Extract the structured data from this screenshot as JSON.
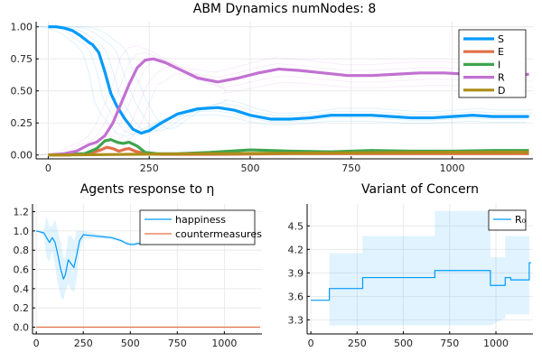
{
  "chart_data": [
    {
      "type": "line",
      "title": "ABM Dynamics numNodes: 8",
      "xlim": [
        -30,
        1200
      ],
      "ylim": [
        -0.03,
        1.04
      ],
      "xticks": [
        0,
        250,
        500,
        750,
        1000
      ],
      "yticks": [
        0.0,
        0.25,
        0.5,
        0.75,
        1.0
      ],
      "ytick_labels": [
        "0.00",
        "0.25",
        "0.50",
        "0.75",
        "1.00"
      ],
      "grid": true,
      "legend": "top-right",
      "series": [
        {
          "name": "S",
          "color": "#009AFA",
          "x": [
            0,
            20,
            40,
            60,
            80,
            100,
            110,
            125,
            140,
            155,
            170,
            190,
            210,
            230,
            250,
            280,
            320,
            370,
            420,
            460,
            500,
            550,
            600,
            650,
            700,
            750,
            800,
            850,
            900,
            950,
            1000,
            1050,
            1100,
            1150,
            1190
          ],
          "y": [
            1.0,
            1.0,
            0.99,
            0.97,
            0.93,
            0.88,
            0.86,
            0.8,
            0.65,
            0.48,
            0.38,
            0.28,
            0.2,
            0.17,
            0.19,
            0.25,
            0.32,
            0.36,
            0.37,
            0.35,
            0.31,
            0.28,
            0.28,
            0.29,
            0.31,
            0.31,
            0.31,
            0.3,
            0.29,
            0.29,
            0.3,
            0.31,
            0.3,
            0.3,
            0.3
          ]
        },
        {
          "name": "E",
          "color": "#E36F47",
          "x": [
            0,
            50,
            90,
            110,
            130,
            145,
            160,
            175,
            190,
            200,
            215,
            240,
            280,
            400,
            600,
            800,
            1000,
            1190
          ],
          "y": [
            0.0,
            0.0,
            0.01,
            0.02,
            0.04,
            0.06,
            0.05,
            0.03,
            0.045,
            0.05,
            0.03,
            0.01,
            0.005,
            0.005,
            0.01,
            0.01,
            0.01,
            0.01
          ]
        },
        {
          "name": "I",
          "color": "#3EA44E",
          "x": [
            0,
            50,
            90,
            120,
            140,
            155,
            170,
            185,
            200,
            220,
            240,
            270,
            320,
            400,
            450,
            500,
            550,
            600,
            700,
            800,
            900,
            1000,
            1100,
            1190
          ],
          "y": [
            0.0,
            0.005,
            0.01,
            0.05,
            0.11,
            0.12,
            0.1,
            0.09,
            0.1,
            0.07,
            0.02,
            0.01,
            0.01,
            0.02,
            0.03,
            0.04,
            0.035,
            0.03,
            0.025,
            0.035,
            0.03,
            0.03,
            0.035,
            0.035
          ]
        },
        {
          "name": "R",
          "color": "#C271D2",
          "x": [
            0,
            40,
            70,
            100,
            120,
            140,
            160,
            180,
            200,
            220,
            240,
            260,
            290,
            330,
            370,
            420,
            470,
            520,
            570,
            620,
            680,
            740,
            800,
            860,
            920,
            980,
            1040,
            1100,
            1150,
            1190
          ],
          "y": [
            0.0,
            0.01,
            0.03,
            0.08,
            0.1,
            0.15,
            0.25,
            0.4,
            0.55,
            0.68,
            0.74,
            0.75,
            0.72,
            0.66,
            0.6,
            0.57,
            0.6,
            0.64,
            0.67,
            0.66,
            0.64,
            0.62,
            0.62,
            0.63,
            0.64,
            0.64,
            0.63,
            0.62,
            0.62,
            0.63
          ]
        },
        {
          "name": "D",
          "color": "#AC8D18",
          "x": [
            0,
            100,
            200,
            300,
            400,
            500,
            600,
            700,
            800,
            900,
            1000,
            1100,
            1190
          ],
          "y": [
            0.0,
            0.002,
            0.005,
            0.008,
            0.01,
            0.012,
            0.014,
            0.016,
            0.018,
            0.02,
            0.021,
            0.022,
            0.023
          ]
        }
      ]
    },
    {
      "type": "line",
      "title": "Agents response to η",
      "xlim": [
        -20,
        1200
      ],
      "ylim": [
        -0.07,
        1.28
      ],
      "xticks": [
        0,
        250,
        500,
        750,
        1000
      ],
      "yticks": [
        0.0,
        0.2,
        0.4,
        0.6,
        0.8,
        1.0,
        1.2
      ],
      "ytick_labels": [
        "0.0",
        "0.2",
        "0.4",
        "0.6",
        "0.8",
        "1.0",
        "1.2"
      ],
      "grid": true,
      "legend": "top-right",
      "series": [
        {
          "name": "happiness",
          "color": "#009AFA",
          "x": [
            0,
            20,
            40,
            55,
            70,
            85,
            100,
            115,
            130,
            145,
            155,
            170,
            185,
            200,
            215,
            230,
            250,
            300,
            350,
            400,
            450,
            480,
            500,
            520,
            540,
            560,
            600
          ],
          "y": [
            1.0,
            0.99,
            0.98,
            0.93,
            0.88,
            0.93,
            0.88,
            0.75,
            0.6,
            0.5,
            0.55,
            0.7,
            0.66,
            0.62,
            0.75,
            0.9,
            0.96,
            0.95,
            0.94,
            0.93,
            0.9,
            0.87,
            0.86,
            0.86,
            0.87,
            0.87,
            0.87
          ],
          "band_upper": [
            1.0,
            1.0,
            1.0,
            1.15,
            1.05,
            1.05,
            1.12,
            1.0,
            0.88,
            0.72,
            0.72,
            0.95,
            0.95,
            0.9,
            1.0,
            1.0,
            1.0,
            0.98,
            0.96,
            0.95,
            0.92,
            0.89,
            0.88,
            0.88,
            0.89,
            0.89,
            0.89
          ],
          "band_lower": [
            1.0,
            0.98,
            0.94,
            0.72,
            0.68,
            0.8,
            0.64,
            0.45,
            0.32,
            0.28,
            0.38,
            0.45,
            0.4,
            0.36,
            0.5,
            0.78,
            0.92,
            0.92,
            0.92,
            0.91,
            0.88,
            0.85,
            0.84,
            0.84,
            0.85,
            0.85,
            0.85
          ]
        },
        {
          "name": "countermeasures",
          "color": "#E36F47",
          "x": [
            0,
            1190
          ],
          "y": [
            0.0,
            0.0
          ]
        }
      ]
    },
    {
      "type": "line",
      "title": "Variant of Concern",
      "xlim": [
        -20,
        1200
      ],
      "ylim": [
        3.12,
        4.78
      ],
      "xticks": [
        0,
        250,
        500,
        750,
        1000
      ],
      "yticks": [
        3.3,
        3.6,
        3.9,
        4.2,
        4.5
      ],
      "ytick_labels": [
        "3.3",
        "3.6",
        "3.9",
        "4.2",
        "4.5"
      ],
      "grid": true,
      "legend": "top-right",
      "series": [
        {
          "name": "R₀",
          "color": "#009AFA",
          "x": [
            0,
            100,
            100,
            280,
            280,
            670,
            670,
            970,
            970,
            1050,
            1050,
            1080,
            1080,
            1180,
            1180,
            1190
          ],
          "y": [
            3.55,
            3.55,
            3.7,
            3.7,
            3.84,
            3.84,
            3.93,
            3.93,
            3.74,
            3.74,
            3.84,
            3.84,
            3.81,
            3.81,
            4.03,
            4.03
          ],
          "band_x": [
            100,
            100,
            280,
            280,
            670,
            670,
            970,
            970,
            1050,
            1050,
            1180,
            1180
          ],
          "band_upper": [
            4.15,
            4.15,
            4.15,
            4.37,
            4.37,
            4.69,
            4.69,
            4.1,
            4.1,
            4.37,
            4.37,
            4.37
          ],
          "band_lower": [
            3.23,
            3.23,
            3.23,
            3.23,
            3.23,
            3.23,
            3.23,
            3.23,
            3.32,
            3.37,
            3.37,
            3.37
          ]
        }
      ]
    }
  ]
}
